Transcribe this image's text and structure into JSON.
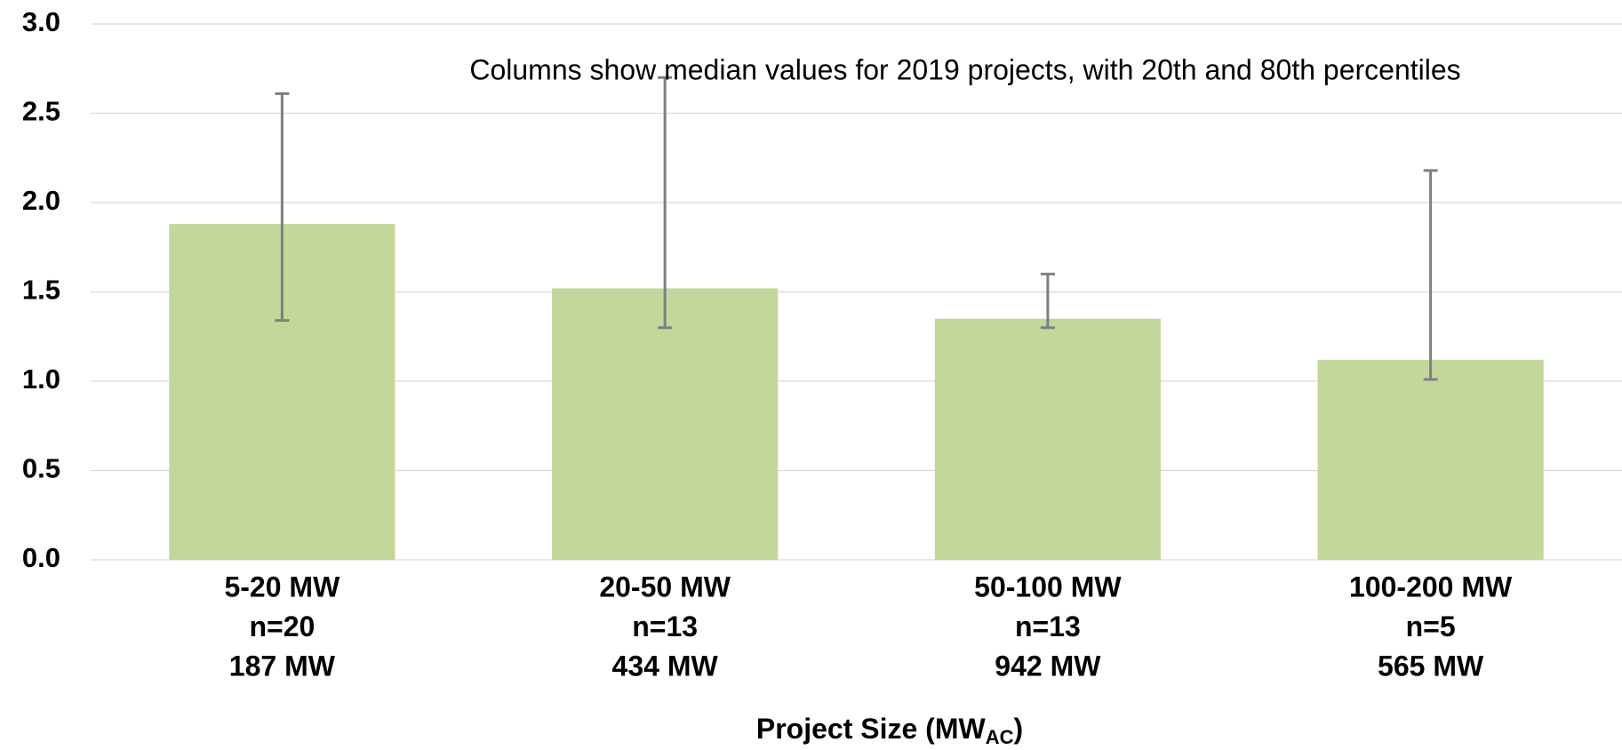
{
  "chart_data": {
    "type": "bar",
    "annotation": "Columns show median values for 2019 projects, with 20th and 80th percentiles",
    "x_label": {
      "text": "Project Size (MW",
      "subscript": "AC",
      "suffix": ")"
    },
    "categories": [
      [
        "5-20 MW",
        "n=20",
        "187 MW"
      ],
      [
        "20-50 MW",
        "n=13",
        "434 MW"
      ],
      [
        "50-100 MW",
        "n=13",
        "942 MW"
      ],
      [
        "100-200 MW",
        "n=5",
        "565 MW"
      ]
    ],
    "values": [
      1.88,
      1.52,
      1.35,
      1.12
    ],
    "error_low": [
      1.34,
      1.3,
      1.3,
      1.01
    ],
    "error_high": [
      2.61,
      2.7,
      1.6,
      2.18
    ],
    "color": "#c4d79b",
    "error_color": "#7f7f7f",
    "ylim": [
      0,
      3
    ],
    "yticks": [
      {
        "value": 0,
        "label": "0.0"
      },
      {
        "value": 0.5,
        "label": "0.5"
      },
      {
        "value": 1,
        "label": "1.0"
      },
      {
        "value": 1.5,
        "label": "1.5"
      },
      {
        "value": 2,
        "label": "2.0"
      },
      {
        "value": 2.5,
        "label": "2.5"
      },
      {
        "value": 3,
        "label": "3.0"
      }
    ],
    "grid": true
  }
}
